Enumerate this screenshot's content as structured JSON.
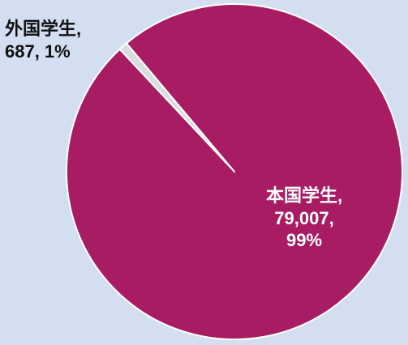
{
  "chart_data": {
    "type": "pie",
    "slices": [
      {
        "category": "外国学生",
        "value": 687,
        "percent": "1%",
        "color": "#dcdcdc",
        "label_lines": [
          "外国学生,",
          "687, 1%"
        ]
      },
      {
        "category": "本国学生",
        "value": 79007,
        "percent": "99%",
        "color": "#a71c62",
        "label_lines": [
          "本国学生,",
          "79,007,",
          "99%"
        ]
      }
    ],
    "start_angle_deg": -40,
    "direction": "counterclockwise",
    "background_color": "#d3dff0",
    "slice_edge_color": "#ffffff"
  }
}
